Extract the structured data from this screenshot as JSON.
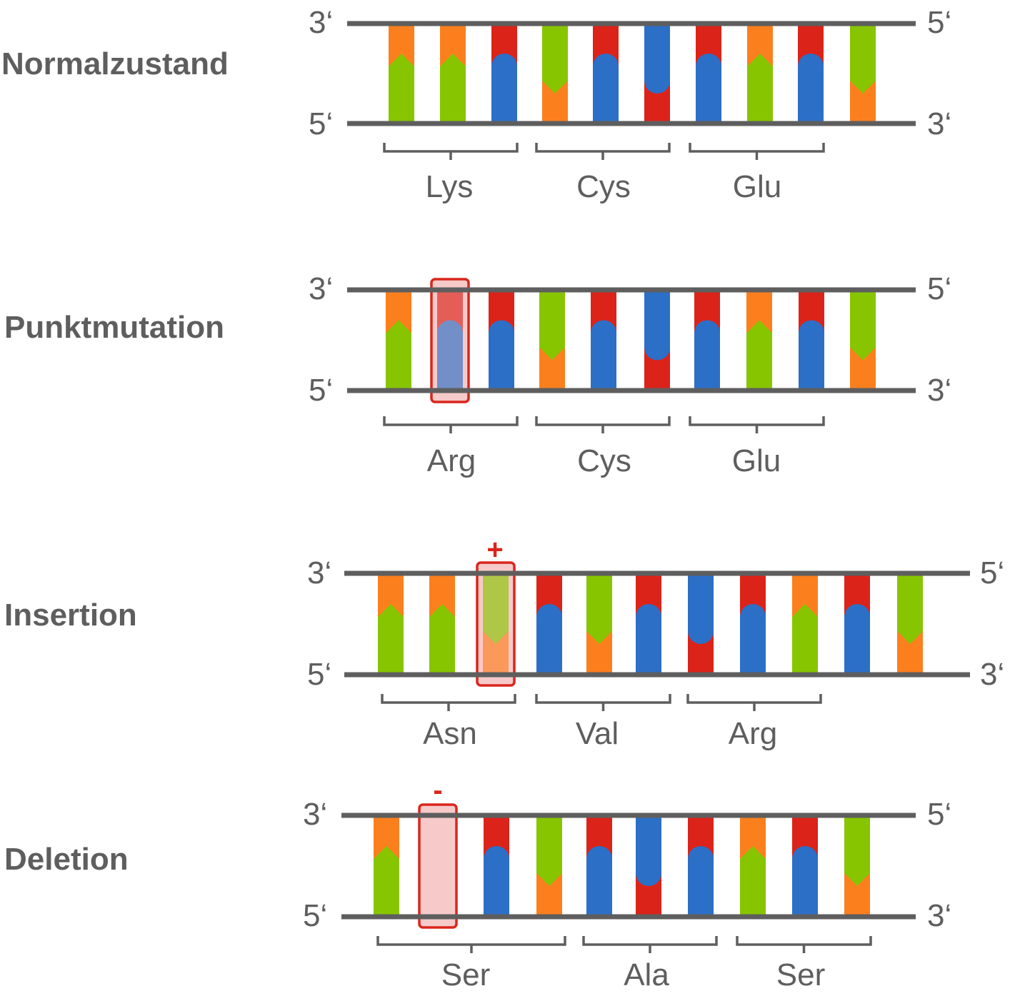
{
  "colors": {
    "A": "#87c500",
    "T": "#fc7f1e",
    "G": "#2c6fc7",
    "C": "#dc2319",
    "strand": "#5e5e5e",
    "highlight_stroke": "#d9261c",
    "highlight_fill": "#f7caca"
  },
  "rows": [
    {
      "label": "Normalzustand",
      "ends": {
        "top_left": "3‘",
        "bottom_left": "5‘",
        "top_right": "5‘",
        "bottom_right": "3‘"
      },
      "bases": [
        "T",
        "T",
        "C",
        "A",
        "C",
        "G",
        "C",
        "T",
        "C",
        "A"
      ],
      "codons": [
        {
          "aa": "Lys",
          "from": 0,
          "to": 2
        },
        {
          "aa": "Cys",
          "from": 3,
          "to": 5
        },
        {
          "aa": "Glu",
          "from": 6,
          "to": 8
        }
      ],
      "highlight": null
    },
    {
      "label": "Punktmutation",
      "ends": {
        "top_left": "3‘",
        "bottom_left": "5‘",
        "top_right": "5‘",
        "bottom_right": "3‘"
      },
      "bases": [
        "T",
        "C",
        "C",
        "A",
        "C",
        "G",
        "C",
        "T",
        "C",
        "A"
      ],
      "codons": [
        {
          "aa": "Arg",
          "from": 0,
          "to": 2
        },
        {
          "aa": "Cys",
          "from": 3,
          "to": 5
        },
        {
          "aa": "Glu",
          "from": 6,
          "to": 8
        }
      ],
      "highlight": {
        "index": 1,
        "sign": ""
      }
    },
    {
      "label": "Insertion",
      "ends": {
        "top_left": "3‘",
        "bottom_left": "5‘",
        "top_right": "5‘",
        "bottom_right": "3‘"
      },
      "bases": [
        "T",
        "T",
        "A",
        "C",
        "A",
        "C",
        "G",
        "C",
        "T",
        "C",
        "A"
      ],
      "codons": [
        {
          "aa": "Asn",
          "from": 0,
          "to": 2
        },
        {
          "aa": "Val",
          "from": 3,
          "to": 5
        },
        {
          "aa": "Arg",
          "from": 6,
          "to": 8
        }
      ],
      "highlight": {
        "index": 2,
        "sign": "+"
      }
    },
    {
      "label": "Deletion",
      "ends": {
        "top_left": "3‘",
        "bottom_left": "5‘",
        "top_right": "5‘",
        "bottom_right": "3‘"
      },
      "bases": [
        "T",
        "-",
        "C",
        "A",
        "C",
        "G",
        "C",
        "T",
        "C",
        "A"
      ],
      "codons": [
        {
          "aa": "Ser",
          "from": 0,
          "to": 2
        },
        {
          "aa": "Ala",
          "from": 3,
          "to": 5
        },
        {
          "aa": "Ser",
          "from": 6,
          "to": 8
        }
      ],
      "highlight": {
        "index": 1,
        "sign": "-"
      }
    }
  ]
}
